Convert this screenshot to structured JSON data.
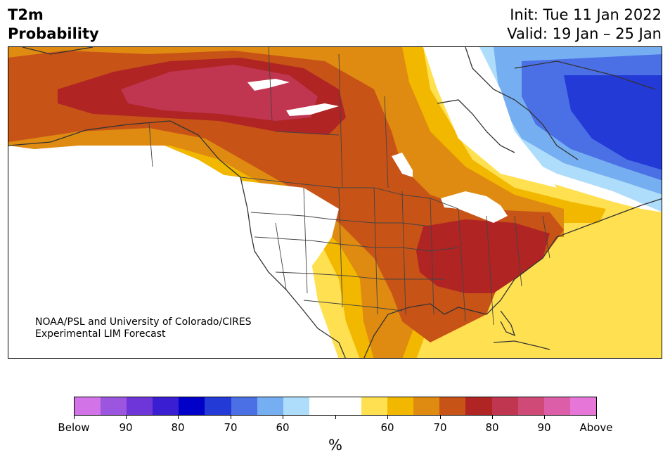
{
  "header": {
    "title_line1": "T2m",
    "title_line2": "Probability",
    "init": "Init: Tue 11 Jan 2022",
    "valid": "Valid: 19 Jan – 25 Jan"
  },
  "credit": {
    "line1": "NOAA/PSL and University of Colorado/CIRES",
    "line2": "Experimental LIM Forecast"
  },
  "colorbar": {
    "colors": [
      "#d274e8",
      "#9b55df",
      "#6e35d8",
      "#3a1ed2",
      "#0000c8",
      "#233ad6",
      "#4b70e6",
      "#75aef1",
      "#aedcfb",
      "#ffffff",
      "#ffffff",
      "#ffe050",
      "#f2b800",
      "#df8a10",
      "#c75317",
      "#b02424",
      "#c03550",
      "#d04a78",
      "#dc5ea8",
      "#e676d8"
    ],
    "labels": {
      "below": "Below",
      "b90": "90",
      "b80": "80",
      "b70": "70",
      "b60": "60",
      "a60": "60",
      "a70": "70",
      "a80": "80",
      "a90": "90",
      "above": "Above"
    },
    "unit": "%"
  }
}
